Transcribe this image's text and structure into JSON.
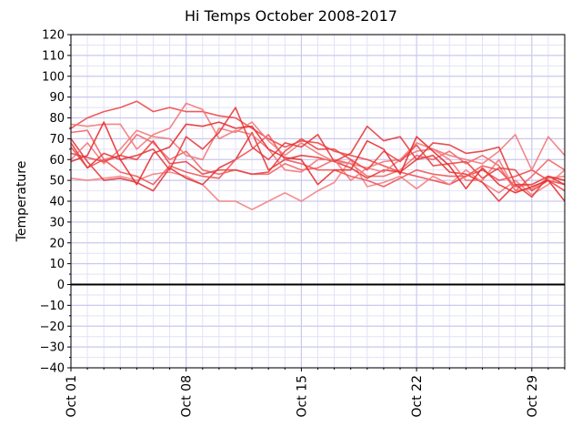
{
  "chart_data": {
    "type": "line",
    "title": "Hi Temps October 2008-2017",
    "xlabel": "",
    "ylabel": "Temperature",
    "days": [
      1,
      2,
      3,
      4,
      5,
      6,
      7,
      8,
      9,
      10,
      11,
      12,
      13,
      14,
      15,
      16,
      17,
      18,
      19,
      20,
      21,
      22,
      23,
      24,
      25,
      26,
      27,
      28,
      29,
      30,
      31
    ],
    "xlim": [
      1,
      31
    ],
    "ylim": [
      -40,
      120
    ],
    "x_ticks": [
      1,
      8,
      15,
      22,
      29
    ],
    "x_tick_labels": [
      "Oct 01",
      "Oct 08",
      "Oct 15",
      "Oct 22",
      "Oct 29"
    ],
    "y_ticks": [
      -40,
      -30,
      -20,
      -10,
      0,
      10,
      20,
      30,
      40,
      50,
      60,
      70,
      80,
      90,
      100,
      110,
      120
    ],
    "y_tick_labels": [
      "−40",
      "−30",
      "−20",
      "−10",
      "0",
      "10",
      "20",
      "30",
      "40",
      "50",
      "60",
      "70",
      "80",
      "90",
      "100",
      "110",
      "120"
    ],
    "zero_line": 0,
    "grid": true,
    "series": [
      {
        "values": [
          75,
          80,
          83,
          85,
          88,
          83,
          85,
          83,
          83,
          81,
          80,
          75,
          70,
          66,
          69,
          68,
          64,
          62,
          60,
          57,
          54,
          52,
          50,
          48,
          52,
          55,
          50,
          52,
          55,
          50,
          48
        ]
      },
      {
        "values": [
          73,
          74,
          60,
          62,
          72,
          68,
          60,
          64,
          55,
          53,
          55,
          53,
          53,
          58,
          55,
          56,
          60,
          58,
          52,
          52,
          55,
          62,
          60,
          64,
          58,
          62,
          57,
          45,
          52,
          60,
          55
        ]
      },
      {
        "values": [
          51,
          50,
          51,
          52,
          50,
          53,
          54,
          52,
          48,
          40,
          40,
          36,
          40,
          44,
          40,
          45,
          49,
          60,
          47,
          49,
          52,
          46,
          52,
          48,
          55,
          49,
          44,
          50,
          43,
          48,
          55
        ]
      },
      {
        "values": [
          70,
          59,
          50,
          51,
          49,
          45,
          56,
          51,
          48,
          56,
          60,
          73,
          55,
          60,
          62,
          61,
          59,
          56,
          51,
          55,
          54,
          60,
          62,
          54,
          53,
          49,
          40,
          48,
          48,
          52,
          48
        ]
      },
      {
        "values": [
          77,
          76,
          77,
          77,
          65,
          72,
          75,
          87,
          84,
          70,
          74,
          72,
          65,
          55,
          54,
          60,
          60,
          50,
          56,
          59,
          60,
          68,
          65,
          60,
          50,
          50,
          60,
          45,
          46,
          51,
          52
        ]
      },
      {
        "values": [
          66,
          56,
          60,
          54,
          52,
          48,
          57,
          54,
          52,
          51,
          60,
          65,
          72,
          60,
          58,
          55,
          55,
          52,
          50,
          47,
          51,
          55,
          53,
          52,
          52,
          57,
          55,
          47,
          48,
          52,
          50
        ]
      },
      {
        "values": [
          60,
          68,
          58,
          65,
          74,
          71,
          70,
          62,
          60,
          75,
          73,
          78,
          69,
          62,
          68,
          63,
          59,
          58,
          56,
          54,
          60,
          64,
          65,
          62,
          60,
          58,
          64,
          72,
          55,
          71,
          62
        ]
      },
      {
        "values": [
          63,
          61,
          59,
          62,
          60,
          69,
          58,
          59,
          53,
          55,
          55,
          53,
          54,
          64,
          70,
          65,
          65,
          60,
          55,
          64,
          59,
          67,
          57,
          58,
          59,
          51,
          56,
          55,
          45,
          50,
          45
        ]
      },
      {
        "values": [
          68,
          56,
          63,
          60,
          62,
          65,
          55,
          71,
          65,
          73,
          85,
          66,
          60,
          68,
          66,
          72,
          59,
          63,
          76,
          69,
          71,
          60,
          68,
          67,
          63,
          64,
          66,
          48,
          42,
          52,
          50
        ]
      },
      {
        "values": [
          59,
          62,
          78,
          60,
          48,
          63,
          66,
          77,
          76,
          78,
          75,
          76,
          65,
          61,
          60,
          48,
          55,
          55,
          69,
          65,
          53,
          71,
          64,
          57,
          46,
          56,
          48,
          44,
          47,
          50,
          40
        ]
      }
    ]
  }
}
